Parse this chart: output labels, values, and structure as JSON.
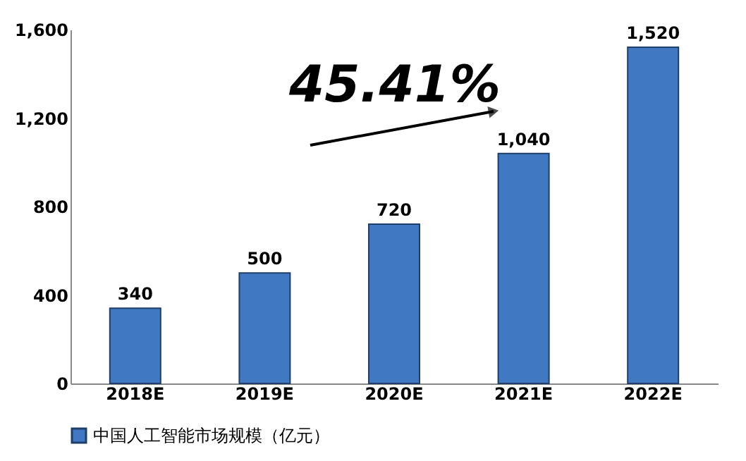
{
  "chart_data": {
    "type": "bar",
    "categories": [
      "2018E",
      "2019E",
      "2020E",
      "2021E",
      "2022E"
    ],
    "series": [
      {
        "name": "中国人工智能市场规模（亿元）",
        "color": "#4079c2",
        "values": [
          340,
          500,
          720,
          1040,
          1520
        ],
        "value_labels": [
          "340",
          "500",
          "720",
          "1,040",
          "1,520"
        ]
      }
    ],
    "ylim": [
      0,
      1600
    ],
    "yticks": [
      0,
      {
        "value": 400,
        "label": "400"
      },
      {
        "value": 800,
        "label": "800"
      },
      {
        "value": 1200,
        "label": "1,200"
      },
      {
        "value": 1600,
        "label": "1,600"
      }
    ],
    "annotations": [
      "45.41%"
    ],
    "legend": "bottom",
    "grid": false
  }
}
